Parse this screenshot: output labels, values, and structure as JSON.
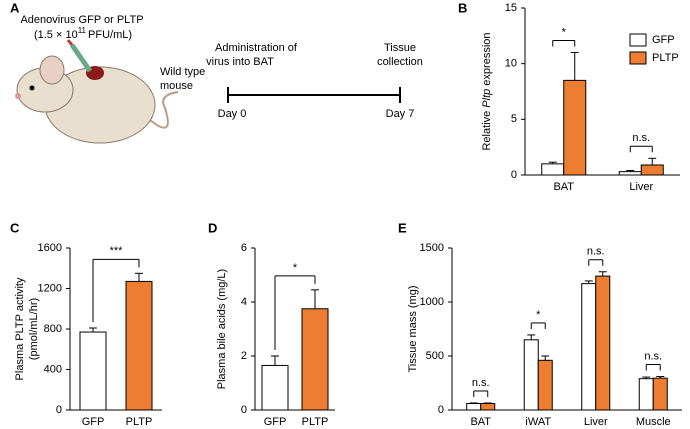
{
  "panel_a": {
    "panel": "A",
    "virus_line": "Adenovirus GFP or PLTP",
    "dose_pre": "(1.5 × 10",
    "dose_exp": "11",
    "dose_post": "PFU/mL)",
    "mouse_label": [
      "Wild type",
      "mouse"
    ],
    "event_start": [
      "Administration of",
      "virus into BAT"
    ],
    "event_end": [
      "Tissue",
      "collection"
    ],
    "day_start": "Day 0",
    "day_end": "Day 7"
  },
  "chart_data": [
    {
      "type": "bar",
      "panel": "B",
      "y_label": [
        "Relative",
        "Pltp",
        "expression"
      ],
      "categories": [
        "BAT",
        "Liver"
      ],
      "series": [
        {
          "name": "GFP",
          "color": "#ffffff",
          "values": [
            1.0,
            0.3
          ],
          "errors": [
            0.15,
            0.1
          ]
        },
        {
          "name": "PLTP",
          "color": "#ed7d31",
          "values": [
            8.5,
            0.9
          ],
          "errors": [
            2.5,
            0.6
          ]
        }
      ],
      "annotations": [
        "*",
        "n.s."
      ],
      "ylim": [
        0,
        15
      ],
      "yticks": [
        0,
        5,
        10,
        15
      ],
      "legend": "upper-right"
    },
    {
      "type": "bar",
      "panel": "C",
      "y_label": [
        "Plasma PLTP activity",
        "(pmol/mL/hr)"
      ],
      "categories": [
        "GFP",
        "PLTP"
      ],
      "values": [
        770,
        1270
      ],
      "errors": [
        40,
        80
      ],
      "colors": [
        "#ffffff",
        "#ed7d31"
      ],
      "annotation": "***",
      "ylim": [
        0,
        1600
      ],
      "yticks": [
        0,
        400,
        800,
        1200,
        1600
      ]
    },
    {
      "type": "bar",
      "panel": "D",
      "y_label": [
        "Plasma bile acids (mg/L)"
      ],
      "categories": [
        "GFP",
        "PLTP"
      ],
      "values": [
        1.65,
        3.75
      ],
      "errors": [
        0.35,
        0.7
      ],
      "colors": [
        "#ffffff",
        "#ed7d31"
      ],
      "annotation": "*",
      "ylim": [
        0,
        6
      ],
      "yticks": [
        0,
        2,
        4,
        6
      ]
    },
    {
      "type": "bar",
      "panel": "E",
      "y_label": [
        "Tissue mass (mg)"
      ],
      "categories": [
        "BAT",
        "iWAT",
        "Liver",
        "Muscle"
      ],
      "series": [
        {
          "name": "GFP",
          "color": "#ffffff",
          "values": [
            60,
            650,
            1170,
            290
          ],
          "errors": [
            5,
            45,
            25,
            15
          ]
        },
        {
          "name": "PLTP",
          "color": "#ed7d31",
          "values": [
            60,
            460,
            1240,
            295
          ],
          "errors": [
            5,
            40,
            40,
            15
          ]
        }
      ],
      "annotations": [
        "n.s.",
        "*",
        "n.s.",
        "n.s."
      ],
      "ylim": [
        0,
        1500
      ],
      "yticks": [
        0,
        500,
        1000,
        1500
      ]
    }
  ]
}
